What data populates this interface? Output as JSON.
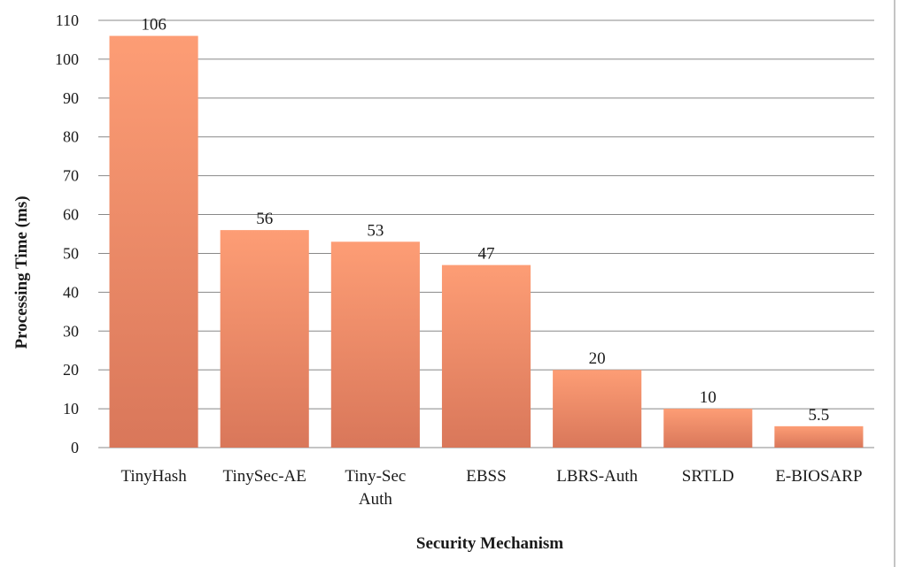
{
  "chart_data": {
    "type": "bar",
    "title": "",
    "xlabel": "Security Mechanism",
    "ylabel": "Processing Time (ms)",
    "categories": [
      "TinyHash",
      "TinySec-AE",
      "Tiny-Sec Auth",
      "EBSS",
      "LBRS-Auth",
      "SRTLD",
      "E-BIOSARP"
    ],
    "category_lines": [
      [
        "TinyHash"
      ],
      [
        "TinySec-AE"
      ],
      [
        "Tiny-Sec",
        "Auth"
      ],
      [
        "EBSS"
      ],
      [
        "LBRS-Auth"
      ],
      [
        "SRTLD"
      ],
      [
        "E-BIOSARP"
      ]
    ],
    "values": [
      106,
      56,
      53,
      47,
      20,
      10,
      5.5
    ],
    "data_labels": [
      "106",
      "56",
      "53",
      "47",
      "20",
      "10",
      "5.5"
    ],
    "ylim": [
      0,
      110
    ],
    "yticks": [
      0,
      10,
      20,
      30,
      40,
      50,
      60,
      70,
      80,
      90,
      100,
      110
    ],
    "grid": true,
    "legend": "none",
    "bar_color_top": "#fd9d75",
    "bar_color_bottom": "#d9775a",
    "grid_color": "#888888"
  }
}
